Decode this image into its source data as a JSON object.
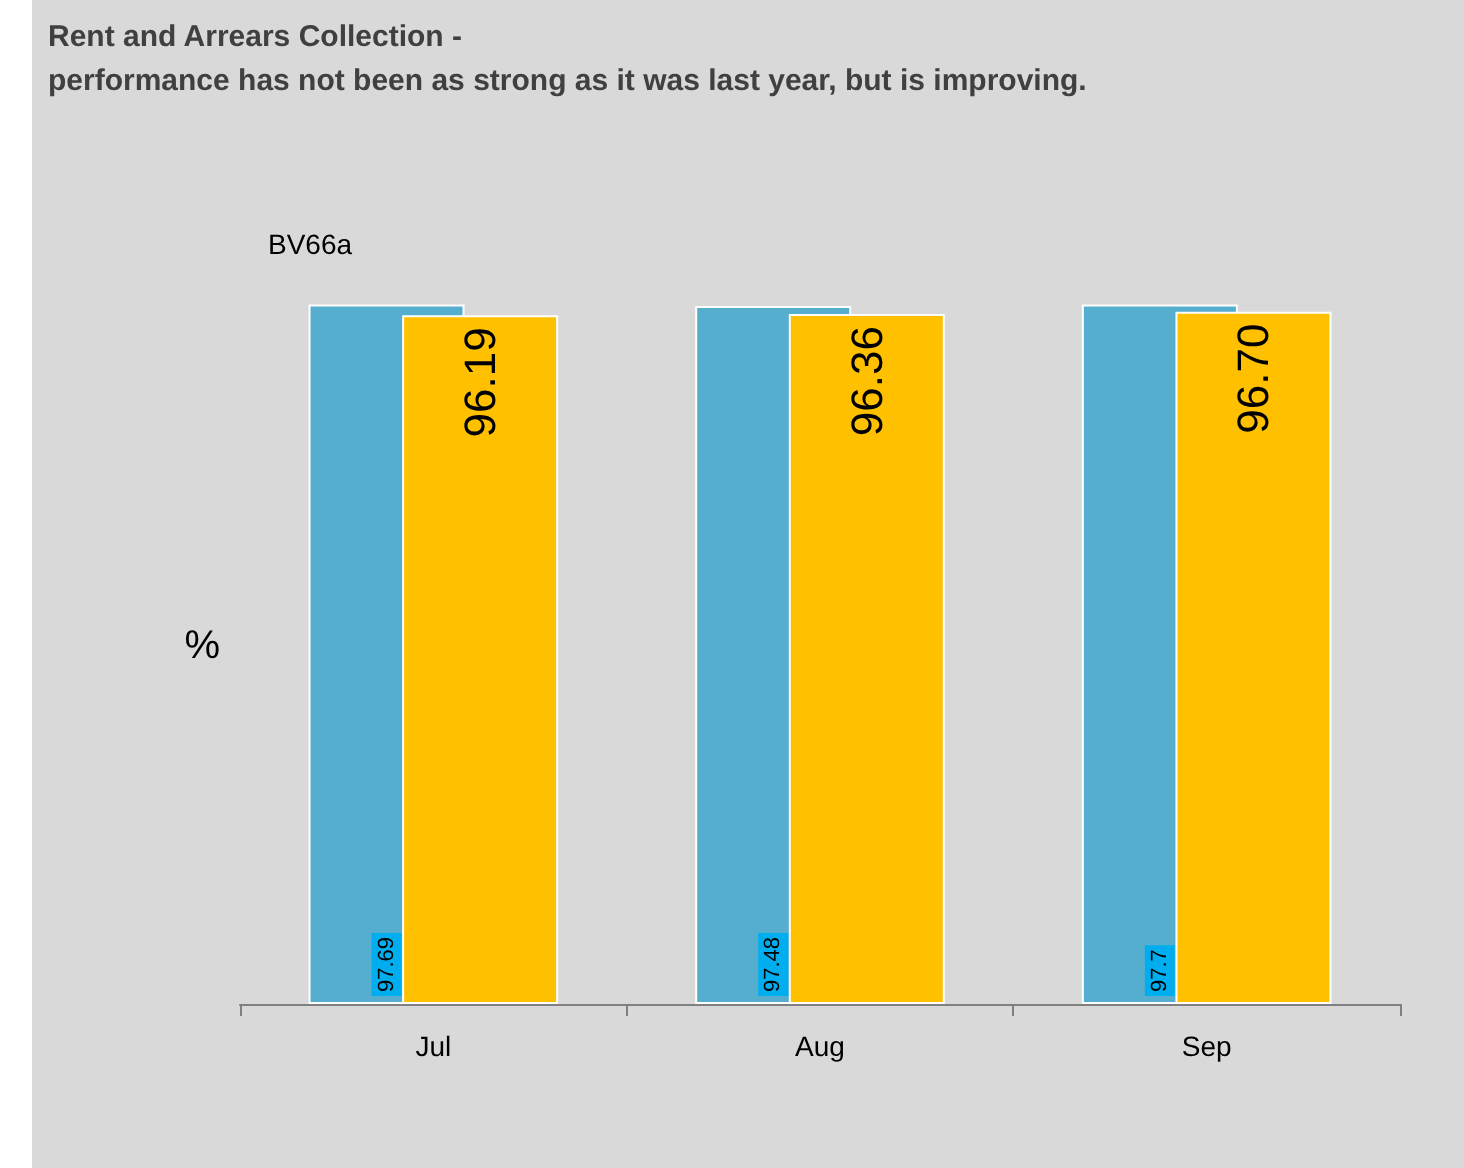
{
  "chart_data": {
    "type": "bar",
    "title": "Rent and Arrears Collection -",
    "subtitle": "performance has not been as strong as it was last year, but is improving.",
    "ylabel": "%",
    "annotations": [
      "BV66a"
    ],
    "categories": [
      "Jul",
      "Aug",
      "Sep"
    ],
    "series": [
      {
        "color": "#56aecf",
        "values": [
          97.69,
          97.48,
          97.7
        ],
        "value_labels": [
          "97.69",
          "97.48",
          "97.7"
        ]
      },
      {
        "color": "#ffc000",
        "values": [
          96.19,
          96.36,
          96.7
        ],
        "value_labels": [
          "96.19",
          "96.36",
          "96.70"
        ]
      }
    ],
    "grid": false
  }
}
